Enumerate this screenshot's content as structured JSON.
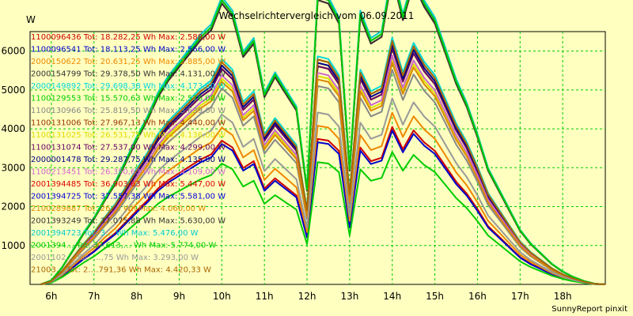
{
  "chart_data": {
    "type": "line",
    "title": "Wechselrichtervergleich vom 06.09.2011",
    "ylabel": "W",
    "xlabel": "",
    "ylim": [
      0,
      6500
    ],
    "xlim": [
      5.5,
      19.0
    ],
    "grid": true,
    "legend_position": "top-left",
    "y_ticks": [
      "1000",
      "2000",
      "3000",
      "4000",
      "5000",
      "6000"
    ],
    "x_ticks": [
      "6h",
      "7h",
      "8h",
      "9h",
      "10h",
      "11h",
      "12h",
      "13h",
      "14h",
      "15h",
      "16h",
      "17h",
      "18h"
    ],
    "footer": "SunnyReport pinxit",
    "x": [
      5.75,
      6.0,
      6.25,
      6.5,
      6.75,
      7.0,
      7.25,
      7.5,
      7.75,
      8.0,
      8.25,
      8.5,
      8.75,
      9.0,
      9.25,
      9.5,
      9.75,
      10.0,
      10.25,
      10.5,
      10.75,
      11.0,
      11.25,
      11.5,
      11.75,
      12.0,
      12.25,
      12.5,
      12.75,
      13.0,
      13.25,
      13.5,
      13.75,
      14.0,
      14.25,
      14.5,
      14.75,
      15.0,
      15.25,
      15.5,
      15.75,
      16.0,
      16.25,
      16.5,
      16.75,
      17.0,
      17.25,
      17.5,
      17.75,
      18.0,
      18.25,
      18.5,
      18.75,
      19.0
    ],
    "series": [
      {
        "label": "1100096436 Tot: 18.282,25 Wh Max: 2.588,00 W",
        "color": "#cc0000",
        "scale": 0.44
      },
      {
        "label": "1100096541 Tot: 18.113,25 Wh Max: 2.566,00 W",
        "color": "#0000cc",
        "scale": 0.43
      },
      {
        "label": "2000150622 Tot: 20.631,25 Wh Max: 2.885,00 W",
        "color": "#ee8800",
        "scale": 0.48
      },
      {
        "label": "2000154799 Tot: 29.378,50 Wh Max: 4.131,00 W",
        "color": "#333333",
        "scale": 0.68
      },
      {
        "label": "2000149892 Tot: 29.698,38 Wh Max: 4.173,00 W",
        "color": "#00d8d8",
        "scale": 0.69
      },
      {
        "label": "1100129553 Tot: 15.570,63 Wh Max: 2.576,00 W",
        "color": "#00cc00",
        "scale": 0.37
      },
      {
        "label": "1100130966 Tot: 25.819,50 Wh Max: 3.639,00 W",
        "color": "#888888",
        "scale": 0.6
      },
      {
        "label": "1100131006 Tot: 27.967,13 Wh Max: 4.440,00 W",
        "color": "#993300",
        "scale": 0.66
      },
      {
        "label": "1100131025 Tot: 26.531,75 Wh Max: 4.136,00 W",
        "color": "#dddd00",
        "scale": 0.63
      },
      {
        "label": "1100131074 Tot: 27.537,00 Wh Max: 4.299,00 W",
        "color": "#660066",
        "scale": 0.66
      },
      {
        "label": "2000001478 Tot: 29.287,75 Wh Max: 4.135,00 W",
        "color": "#000088",
        "scale": 0.67
      },
      {
        "label": "1100213451 Tot: 26.350,63 Wh Max: 4.109,00 W",
        "color": "#cc66cc",
        "scale": 0.64
      },
      {
        "label": "2001394485 Tot: 36.903,63 Wh Max: 5.447,00 W",
        "color": "#dd0000",
        "scale": 0.86
      },
      {
        "label": "2001394725 Tot: 37.557,38 Wh Max: 5.581,00 W",
        "color": "#0000dd",
        "scale": 0.87
      },
      {
        "label": "2100289887 Tot: 26.… Wh Max: 4.060,00 W",
        "color": "#dd8800",
        "scale": 0.62
      },
      {
        "label": "2001393249 Tot: 37.075,88 Wh Max: 5.630,00 W",
        "color": "#333333",
        "scale": 0.86
      },
      {
        "label": "2001394723 Tot: 3… Wh Max: 5.476,00 W",
        "color": "#00cccc",
        "scale": 0.88
      },
      {
        "label": "2001394… Tot: 37.613,… Wh Max: 5.774,00 W",
        "color": "#00cc00",
        "scale": 0.87
      },
      {
        "label": "2001102… Tot: …,75 Wh Max: 3.293,00 W",
        "color": "#999999",
        "scale": 0.52
      },
      {
        "label": "21003… Tot: 2….791,36 Wh Max: 4.420,33 W",
        "color": "#aa6600",
        "scale": 0.68
      }
    ],
    "base_profile": [
      0,
      120,
      500,
      1000,
      1500,
      1950,
      2500,
      3000,
      3650,
      4300,
      4900,
      5600,
      6100,
      6500,
      6900,
      7300,
      7600,
      8400,
      8000,
      6800,
      7200,
      5600,
      6200,
      5700,
      5200,
      2800,
      8500,
      8400,
      7800,
      3400,
      8000,
      7200,
      7400,
      9200,
      7900,
      9000,
      8300,
      7800,
      6900,
      6000,
      5300,
      4400,
      3400,
      2800,
      2200,
      1600,
      1200,
      900,
      600,
      380,
      220,
      100,
      20,
      0
    ]
  }
}
